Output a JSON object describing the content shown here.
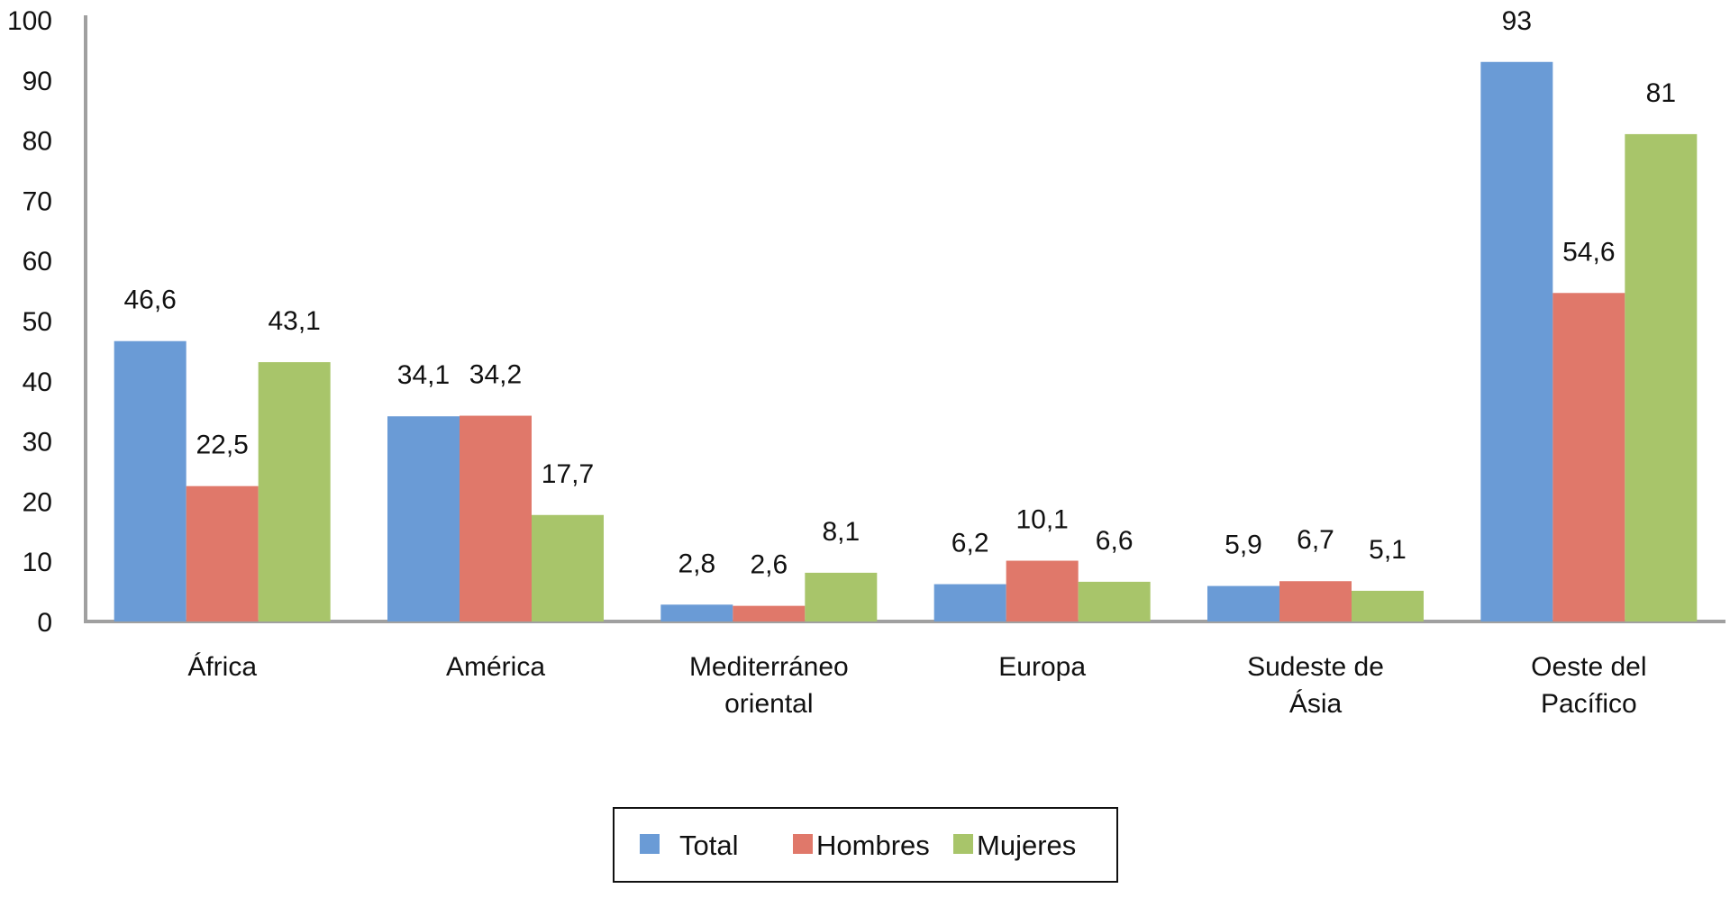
{
  "chart_data": {
    "type": "bar",
    "title": "",
    "xlabel": "",
    "ylabel": "",
    "ylim": [
      0,
      100
    ],
    "yticks": [
      0,
      10,
      20,
      30,
      40,
      50,
      60,
      70,
      80,
      90,
      100
    ],
    "grid": false,
    "legend_position": "bottom-center",
    "categories": [
      [
        "África"
      ],
      [
        "América"
      ],
      [
        "Mediterráneo",
        "oriental"
      ],
      [
        "Europa"
      ],
      [
        "Sudeste de",
        "Ásia"
      ],
      [
        "Oeste del",
        "Pacífico"
      ]
    ],
    "series": [
      {
        "name": "Total",
        "color": "#6a9bd6",
        "values": [
          46.6,
          34.1,
          2.8,
          6.2,
          5.9,
          93
        ],
        "labels": [
          "46,6",
          "34,1",
          "2,8",
          "6,2",
          "5,9",
          "93"
        ]
      },
      {
        "name": "Hombres",
        "color": "#e0786a",
        "values": [
          22.5,
          34.2,
          2.6,
          10.1,
          6.7,
          54.6
        ],
        "labels": [
          "22,5",
          "34,2",
          "2,6",
          "10,1",
          "6,7",
          "54,6"
        ]
      },
      {
        "name": "Mujeres",
        "color": "#a8c56a",
        "values": [
          43.1,
          17.7,
          8.1,
          6.6,
          5.1,
          81
        ],
        "labels": [
          "43,1",
          "17,7",
          "8,1",
          "6,6",
          "5,1",
          "81"
        ]
      }
    ]
  }
}
